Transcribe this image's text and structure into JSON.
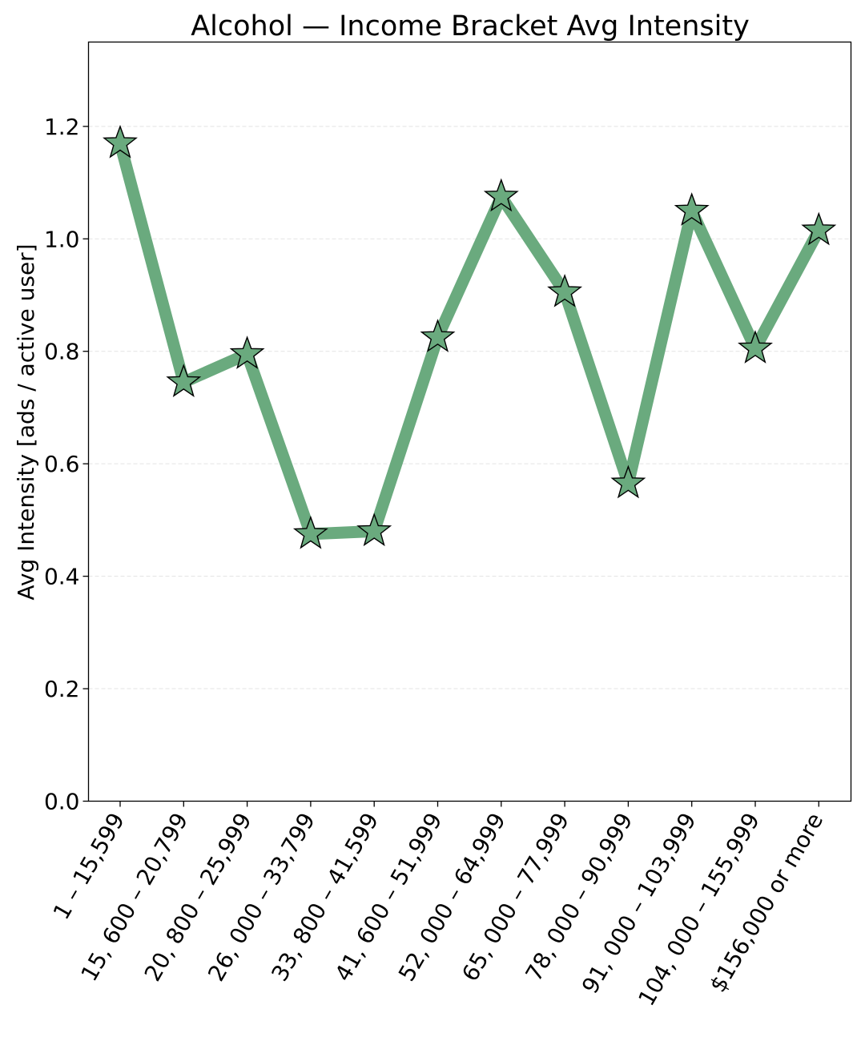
{
  "chart_data": {
    "type": "line",
    "title": "Alcohol — Income Bracket Avg Intensity",
    "xlabel": "",
    "ylabel": "Avg Intensity [ads / active user]",
    "ylim": [
      0,
      1.35
    ],
    "yticks": [
      "0.0",
      "0.2",
      "0.4",
      "0.6",
      "0.8",
      "1.0",
      "1.2"
    ],
    "grid": "horizontal dashed",
    "marker": "star",
    "color": "#6aaa7e",
    "categories": [
      "1 – 15,599",
      "15, 600 – 20,799",
      "20, 800 – 25,999",
      "26, 000 – 33,799",
      "33, 800 – 41,599",
      "41, 600 – 51,999",
      "52, 000 – 64,999",
      "65, 000 – 77,999",
      "78, 000 – 90,999",
      "91, 000 – 103,999",
      "104, 000 – 155,999",
      "$156,000 or more"
    ],
    "values": [
      1.17,
      0.745,
      0.795,
      0.475,
      0.48,
      0.825,
      1.075,
      0.905,
      0.565,
      1.05,
      0.805,
      1.015
    ]
  }
}
